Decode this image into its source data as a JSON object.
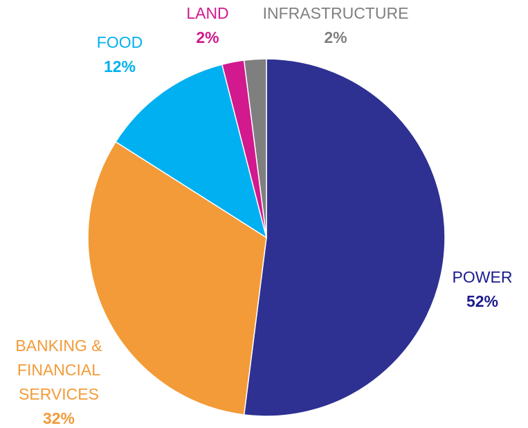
{
  "chart_data": {
    "type": "pie",
    "categories": [
      "POWER",
      "BANKING & FINANCIAL SERVICES",
      "FOOD",
      "LAND",
      "INFRASTRUCTURE"
    ],
    "values": [
      52,
      32,
      12,
      2,
      2
    ],
    "value_labels": [
      "52%",
      "32%",
      "12%",
      "2%",
      "2%"
    ],
    "colors": [
      "#2e3192",
      "#f29b38",
      "#00b0f0",
      "#d2198e",
      "#7f7f7f"
    ],
    "label_colors": [
      "#1b1b8f",
      "#f29b38",
      "#00b0f0",
      "#d2198e",
      "#7f7f7f"
    ]
  }
}
